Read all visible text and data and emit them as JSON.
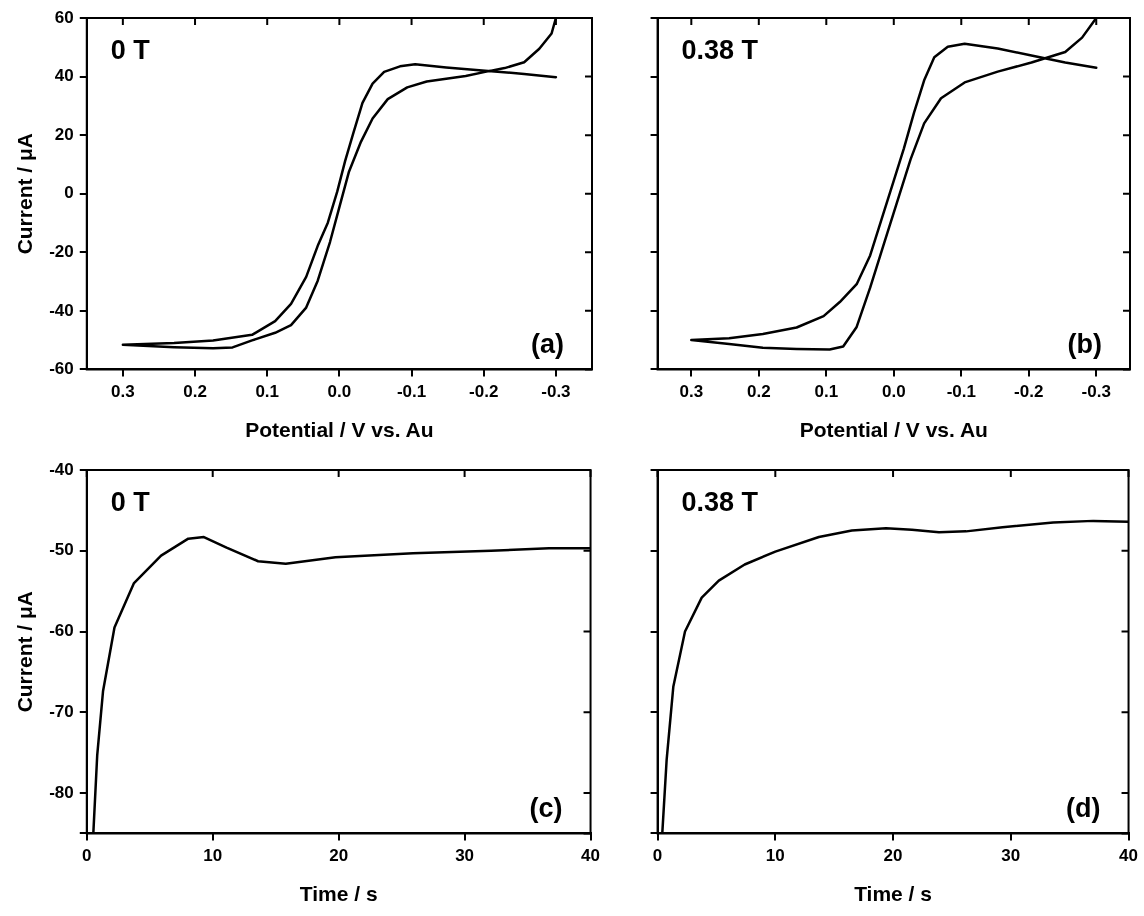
{
  "chart_data": [
    {
      "type": "line",
      "xlabel": "Potential / V vs. Au",
      "ylabel": "Current / μA",
      "annotations": [
        "0 T",
        "(a)"
      ],
      "xlim": [
        0.35,
        -0.35
      ],
      "xticks": [
        {
          "value": 0.3,
          "label": "0.3"
        },
        {
          "value": 0.2,
          "label": "0.2"
        },
        {
          "value": 0.1,
          "label": "0.1"
        },
        {
          "value": 0,
          "label": "0.0"
        },
        {
          "value": -0.1,
          "label": "-0.1"
        },
        {
          "value": -0.2,
          "label": "-0.2"
        },
        {
          "value": -0.3,
          "label": "-0.3"
        }
      ],
      "ylim": [
        -60,
        60
      ],
      "yticks": [
        -60,
        -40,
        -20,
        0,
        20,
        40,
        60
      ],
      "series": [
        {
          "color": "#000000",
          "x": [
            -0.3,
            -0.256,
            -0.202,
            -0.148,
            -0.105,
            -0.084,
            -0.062,
            -0.046,
            -0.032,
            -0.019,
            -0.008,
            0.003,
            0.016,
            0.03,
            0.046,
            0.067,
            0.089,
            0.121,
            0.175,
            0.229,
            0.3,
            0.229,
            0.175,
            0.148,
            0.121,
            0.089,
            0.067,
            0.046,
            0.03,
            0.013,
            0,
            -0.013,
            -0.03,
            -0.046,
            -0.067,
            -0.094,
            -0.121,
            -0.175,
            -0.202,
            -0.229,
            -0.256,
            -0.277,
            -0.294,
            -0.3
          ],
          "values": [
            39.8,
            40.9,
            42,
            43.1,
            44.2,
            43.5,
            41.6,
            37.6,
            31,
            20.4,
            11.2,
            0.7,
            -9.9,
            -17.8,
            -28.4,
            -37.6,
            -43.5,
            -48.2,
            -50.1,
            -51,
            -51.6,
            -52.4,
            -52.8,
            -52.5,
            -50.1,
            -47.5,
            -44.9,
            -38.9,
            -29.7,
            -16.5,
            -4.6,
            7.3,
            17.8,
            25.7,
            32.3,
            36.3,
            38.3,
            40.2,
            41.6,
            42.9,
            44.9,
            49.5,
            54.7,
            60
          ]
        }
      ]
    },
    {
      "type": "line",
      "xlabel": "Potential / V vs. Au",
      "annotations": [
        "0.38 T",
        "(b)"
      ],
      "tick_labels": "x",
      "xlim": [
        0.35,
        -0.35
      ],
      "xticks": [
        {
          "value": 0.3,
          "label": "0.3"
        },
        {
          "value": 0.2,
          "label": "0.2"
        },
        {
          "value": 0.1,
          "label": "0.1"
        },
        {
          "value": 0,
          "label": "0.0"
        },
        {
          "value": -0.1,
          "label": "-0.1"
        },
        {
          "value": -0.2,
          "label": "-0.2"
        },
        {
          "value": -0.3,
          "label": "-0.3"
        }
      ],
      "ylim": [
        -60,
        60
      ],
      "yticks": [
        -60,
        -40,
        -20,
        0,
        20,
        40,
        60
      ],
      "series": [
        {
          "color": "#000000",
          "x": [
            -0.3,
            -0.254,
            -0.204,
            -0.154,
            -0.105,
            -0.08,
            -0.06,
            -0.045,
            -0.03,
            -0.015,
            0,
            0.015,
            0.035,
            0.055,
            0.08,
            0.104,
            0.144,
            0.194,
            0.244,
            0.3,
            0.244,
            0.194,
            0.144,
            0.095,
            0.075,
            0.055,
            0.035,
            0.015,
            -0.005,
            -0.025,
            -0.045,
            -0.07,
            -0.105,
            -0.154,
            -0.204,
            -0.254,
            -0.279,
            -0.3
          ],
          "values": [
            43,
            44.8,
            47.2,
            49.6,
            51.2,
            50.2,
            46.6,
            38.7,
            27.7,
            15.5,
            4.5,
            -6.5,
            -21.1,
            -30.9,
            -37,
            -41.8,
            -45.7,
            -47.9,
            -49.4,
            -50,
            -51.3,
            -52.6,
            -53,
            -53.2,
            -52.2,
            -45.5,
            -32.1,
            -17.4,
            -2.8,
            11.8,
            24,
            32.6,
            38,
            41.7,
            44.8,
            48.4,
            53.3,
            60
          ]
        }
      ]
    },
    {
      "type": "line",
      "xlabel": "Time / s",
      "ylabel": "Current / μA",
      "annotations": [
        "0 T",
        "(c)"
      ],
      "xlim": [
        0,
        40
      ],
      "xticks": [
        0,
        10,
        20,
        30,
        40
      ],
      "ylim": [
        -85,
        -40
      ],
      "yticks": [
        {
          "value": -85,
          "label": null
        },
        -80,
        -70,
        -60,
        -50,
        -40
      ],
      "series": [
        {
          "color": "#000000",
          "x": [
            0.52,
            0.83,
            1.29,
            2.2,
            3.75,
            5.9,
            8.06,
            9.3,
            11.1,
            13.6,
            15.8,
            19.75,
            25.9,
            32.1,
            36.7,
            40
          ],
          "values": [
            -85,
            -75.3,
            -67.4,
            -59.5,
            -54,
            -50.6,
            -48.5,
            -48.3,
            -49.6,
            -51.3,
            -51.6,
            -50.8,
            -50.3,
            -50,
            -49.7,
            -49.7
          ]
        }
      ]
    },
    {
      "type": "line",
      "xlabel": "Time / s",
      "annotations": [
        "0.38 T",
        "(d)"
      ],
      "tick_labels": "x",
      "xlim": [
        0,
        40
      ],
      "xticks": [
        0,
        10,
        20,
        30,
        40
      ],
      "ylim": [
        -85,
        -40
      ],
      "yticks": [
        {
          "value": -85,
          "label": null
        },
        -80,
        -70,
        -60,
        -50,
        -40
      ],
      "series": [
        {
          "color": "#000000",
          "x": [
            0.4,
            0.77,
            1.34,
            2.33,
            3.75,
            5.2,
            7.4,
            10,
            13.7,
            16.5,
            19.4,
            21.6,
            23.9,
            26.2,
            29.3,
            33.6,
            37,
            40
          ],
          "values": [
            -85,
            -75.9,
            -66.8,
            -60,
            -55.8,
            -53.7,
            -51.7,
            -50.1,
            -48.3,
            -47.5,
            -47.2,
            -47.4,
            -47.7,
            -47.6,
            -47.1,
            -46.5,
            -46.3,
            -46.4
          ]
        }
      ]
    }
  ]
}
